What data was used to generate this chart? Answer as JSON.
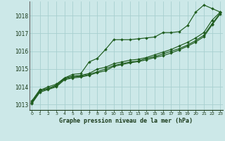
{
  "title": "Graphe pression niveau de la mer (hPa)",
  "bg_color": "#cce8e8",
  "grid_color": "#a8d0d0",
  "line_color": "#1e5c1e",
  "marker_color": "#1e5c1e",
  "xlim": [
    -0.3,
    23.3
  ],
  "ylim": [
    1012.7,
    1018.8
  ],
  "yticks": [
    1013,
    1014,
    1015,
    1016,
    1017,
    1018
  ],
  "xticks": [
    0,
    1,
    2,
    3,
    4,
    5,
    6,
    7,
    8,
    9,
    10,
    11,
    12,
    13,
    14,
    15,
    16,
    17,
    18,
    19,
    20,
    21,
    22,
    23
  ],
  "series": [
    [
      1013.2,
      1013.85,
      1013.9,
      1014.1,
      1014.5,
      1014.7,
      1014.75,
      1015.4,
      1015.6,
      1016.1,
      1016.65,
      1016.65,
      1016.65,
      1016.7,
      1016.75,
      1016.8,
      1017.05,
      1017.05,
      1017.1,
      1017.45,
      1018.2,
      1018.6,
      1018.4,
      1018.2
    ],
    [
      1013.15,
      1013.8,
      1014.0,
      1014.15,
      1014.5,
      1014.6,
      1014.65,
      1014.75,
      1015.0,
      1015.1,
      1015.3,
      1015.4,
      1015.5,
      1015.55,
      1015.65,
      1015.8,
      1015.95,
      1016.1,
      1016.3,
      1016.5,
      1016.75,
      1017.05,
      1017.75,
      1018.2
    ],
    [
      1013.1,
      1013.75,
      1013.9,
      1014.05,
      1014.45,
      1014.55,
      1014.6,
      1014.7,
      1014.85,
      1015.0,
      1015.2,
      1015.3,
      1015.4,
      1015.45,
      1015.6,
      1015.7,
      1015.85,
      1016.0,
      1016.15,
      1016.35,
      1016.6,
      1016.9,
      1017.55,
      1018.15
    ],
    [
      1013.05,
      1013.7,
      1013.85,
      1014.0,
      1014.4,
      1014.5,
      1014.55,
      1014.65,
      1014.8,
      1014.9,
      1015.15,
      1015.25,
      1015.35,
      1015.42,
      1015.52,
      1015.65,
      1015.75,
      1015.9,
      1016.08,
      1016.28,
      1016.52,
      1016.82,
      1017.48,
      1018.1
    ]
  ]
}
